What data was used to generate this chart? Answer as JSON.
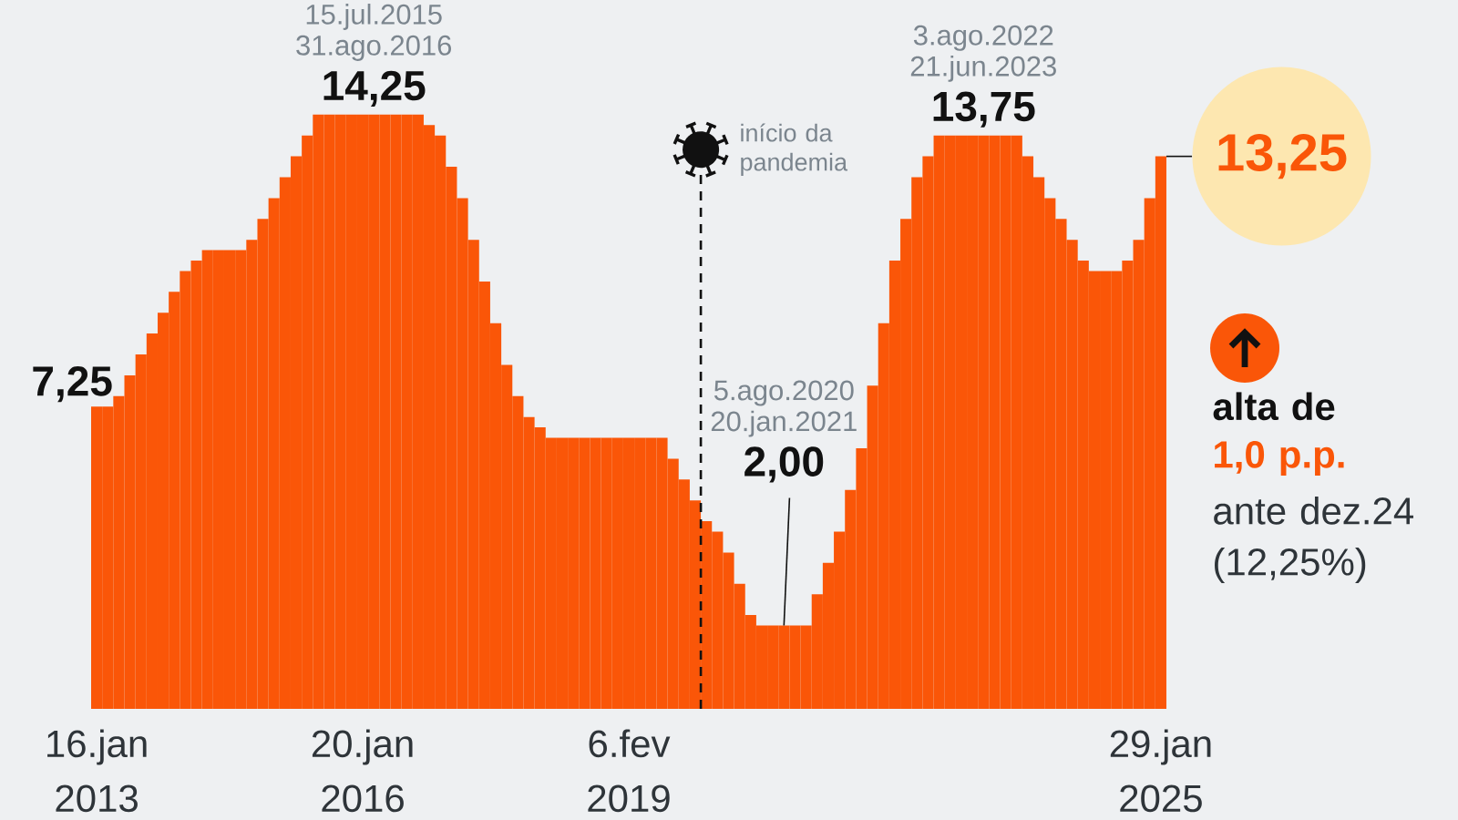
{
  "chart_data": {
    "type": "bar",
    "categories": [
      "16.jan 2013",
      null,
      null,
      null,
      null,
      null,
      null,
      null,
      null,
      null,
      null,
      null,
      null,
      null,
      null,
      null,
      null,
      null,
      null,
      null,
      null,
      null,
      null,
      null,
      "20.jan 2016",
      null,
      null,
      null,
      null,
      null,
      null,
      null,
      null,
      null,
      null,
      null,
      null,
      null,
      null,
      null,
      null,
      null,
      null,
      null,
      null,
      null,
      null,
      null,
      "6.fev 2019",
      null,
      null,
      null,
      null,
      null,
      null,
      null,
      null,
      null,
      null,
      null,
      null,
      null,
      null,
      null,
      null,
      null,
      null,
      null,
      null,
      null,
      null,
      null,
      null,
      null,
      null,
      null,
      null,
      null,
      null,
      null,
      null,
      null,
      null,
      null,
      null,
      null,
      null,
      null,
      null,
      null,
      null,
      null,
      null,
      null,
      null,
      null,
      "29.jan 2025"
    ],
    "values": [
      7.25,
      7.25,
      7.5,
      8,
      8.5,
      9,
      9.5,
      10,
      10.5,
      10.75,
      11,
      11,
      11,
      11,
      11.25,
      11.75,
      12.25,
      12.75,
      13.25,
      13.75,
      14.25,
      14.25,
      14.25,
      14.25,
      14.25,
      14.25,
      14.25,
      14.25,
      14.25,
      14.25,
      14,
      13.75,
      13,
      12.25,
      11.25,
      10.25,
      9.25,
      8.25,
      7.5,
      7,
      6.75,
      6.5,
      6.5,
      6.5,
      6.5,
      6.5,
      6.5,
      6.5,
      6.5,
      6.5,
      6.5,
      6.5,
      6,
      5.5,
      5,
      4.5,
      4.25,
      3.75,
      3,
      2.25,
      2,
      2,
      2,
      2,
      2,
      2.75,
      3.5,
      4.25,
      5.25,
      6.25,
      7.75,
      9.25,
      10.75,
      11.75,
      12.75,
      13.25,
      13.75,
      13.75,
      13.75,
      13.75,
      13.75,
      13.75,
      13.75,
      13.75,
      13.25,
      12.75,
      12.25,
      11.75,
      11.25,
      10.75,
      10.5,
      10.5,
      10.5,
      10.75,
      11.25,
      12.25,
      13.25
    ],
    "value_labels": [
      "7,25",
      null,
      null,
      null,
      null,
      null,
      null,
      null,
      null,
      null,
      null,
      null,
      null,
      null,
      null,
      null,
      null,
      null,
      null,
      null,
      null,
      null,
      null,
      null,
      null,
      "14,25",
      null,
      null,
      null,
      null,
      null,
      null,
      null,
      null,
      null,
      null,
      null,
      null,
      null,
      null,
      null,
      null,
      null,
      null,
      null,
      null,
      null,
      null,
      null,
      null,
      null,
      null,
      null,
      null,
      null,
      null,
      null,
      null,
      null,
      null,
      null,
      null,
      "2,00",
      null,
      null,
      null,
      null,
      null,
      null,
      null,
      null,
      null,
      null,
      null,
      null,
      null,
      null,
      null,
      null,
      null,
      "13,75",
      null,
      null,
      null,
      null,
      null,
      null,
      null,
      null,
      null,
      null,
      null,
      null,
      null,
      null,
      null,
      "13,25"
    ],
    "color": "#fa5608",
    "ylim": [
      0,
      17
    ],
    "tick_labels": "x",
    "annotations": [
      "15.jul.2015 31.ago.2016",
      "5.ago.2020 20.jan.2021",
      "3.ago.2022 21.jun.2023",
      "início da pandemia",
      "alta de",
      "1,0 p.p.",
      "ante dez.24 (12,25%)"
    ]
  }
}
